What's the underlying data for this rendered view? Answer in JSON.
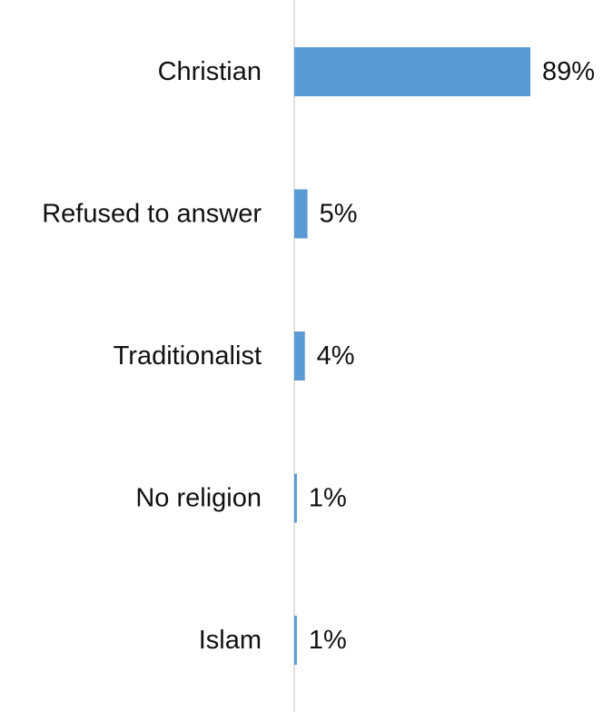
{
  "chart_data": {
    "type": "bar",
    "orientation": "horizontal",
    "categories": [
      "Christian",
      "Refused to answer",
      "Traditionalist",
      "No religion",
      "Islam"
    ],
    "values": [
      89,
      5,
      4,
      1,
      1
    ],
    "value_labels": [
      "89%",
      "5%",
      "4%",
      "1%",
      "1%"
    ],
    "unit": "%",
    "xlim": [
      0,
      100
    ],
    "grid": false,
    "legend": "none",
    "colors": {
      "bar": "#5B9BD5",
      "axis": "#D9D9D9",
      "text": "#111111"
    }
  }
}
